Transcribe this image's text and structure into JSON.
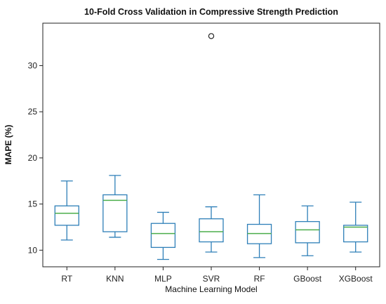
{
  "chart_data": {
    "type": "boxplot",
    "title": "10-Fold Cross Validation in Compressive Strength Prediction",
    "xlabel": "Machine Learning Model",
    "ylabel": "MAPE (%)",
    "ylim": [
      8.2,
      34.6
    ],
    "yticks": [
      10,
      15,
      20,
      25,
      30
    ],
    "grid": false,
    "colors": {
      "box": "#2e7fb8",
      "median": "#4cae4c",
      "flier": "#222222"
    },
    "categories": [
      "RT",
      "KNN",
      "MLP",
      "SVR",
      "RF",
      "GBoost",
      "XGBoost"
    ],
    "boxes": [
      {
        "name": "RT",
        "whisker_low": 11.1,
        "q1": 12.7,
        "median": 14.0,
        "q3": 14.8,
        "whisker_high": 17.5,
        "fliers": []
      },
      {
        "name": "KNN",
        "whisker_low": 11.4,
        "q1": 12.0,
        "median": 15.4,
        "q3": 16.0,
        "whisker_high": 18.1,
        "fliers": []
      },
      {
        "name": "MLP",
        "whisker_low": 9.0,
        "q1": 10.3,
        "median": 11.8,
        "q3": 12.9,
        "whisker_high": 14.1,
        "fliers": []
      },
      {
        "name": "SVR",
        "whisker_low": 9.8,
        "q1": 10.9,
        "median": 12.0,
        "q3": 13.4,
        "whisker_high": 14.7,
        "fliers": [
          33.2
        ]
      },
      {
        "name": "RF",
        "whisker_low": 9.2,
        "q1": 10.7,
        "median": 11.8,
        "q3": 12.8,
        "whisker_high": 16.0,
        "fliers": []
      },
      {
        "name": "GBoost",
        "whisker_low": 9.4,
        "q1": 10.8,
        "median": 12.2,
        "q3": 13.1,
        "whisker_high": 14.8,
        "fliers": []
      },
      {
        "name": "XGBoost",
        "whisker_low": 9.8,
        "q1": 10.9,
        "median": 12.5,
        "q3": 12.7,
        "whisker_high": 15.2,
        "fliers": []
      }
    ]
  }
}
